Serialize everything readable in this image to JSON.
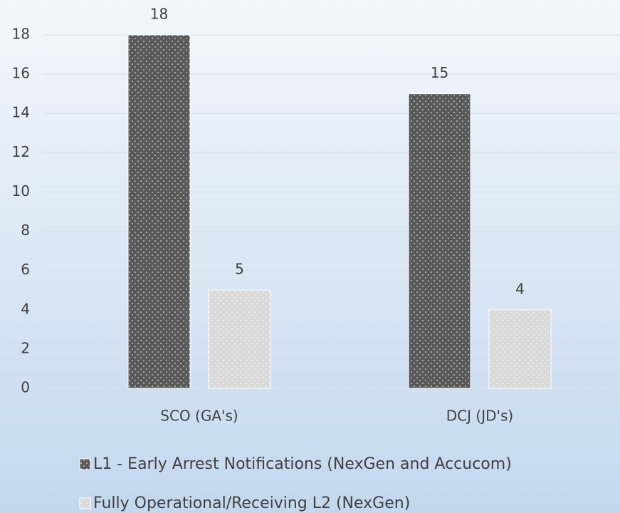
{
  "chart_data": {
    "type": "bar",
    "categories": [
      "SCO (GA's)",
      "DCJ (JD's)"
    ],
    "series": [
      {
        "name": "L1 - Early Arrest Notifications (NexGen and Accucom)",
        "color": "#595959",
        "values": [
          18,
          15
        ]
      },
      {
        "name": "Fully Operational/Receiving L2 (NexGen)",
        "color": "#d9d9d9",
        "values": [
          5,
          4
        ]
      }
    ],
    "ylim": [
      0,
      18
    ],
    "yticks": [
      0,
      2,
      4,
      6,
      8,
      10,
      12,
      14,
      16,
      18
    ],
    "grid": true,
    "legend": "bottom"
  }
}
